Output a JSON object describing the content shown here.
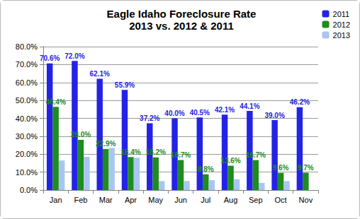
{
  "chart_data": {
    "type": "bar",
    "title": "Eagle Idaho Foreclosure Rate",
    "subtitle": "2013 vs. 2012 & 2011",
    "categories": [
      "Jan",
      "Feb",
      "Mar",
      "Apr",
      "May",
      "Jun",
      "Jul",
      "Aug",
      "Sep",
      "Oct",
      "Nov"
    ],
    "series": [
      {
        "name": "2011",
        "color": "#2323e6",
        "data_labels": true,
        "values": [
          70.6,
          72.0,
          62.1,
          55.9,
          37.2,
          40.0,
          40.5,
          42.1,
          44.1,
          39.0,
          46.2
        ],
        "value_labels": [
          "70.6%",
          "72.0%",
          "62.1%",
          "55.9%",
          "37.2%",
          "40.0%",
          "40.5%",
          "42.1%",
          "44.1%",
          "39.0%",
          "46.2%"
        ]
      },
      {
        "name": "2012",
        "color": "#1e8c1e",
        "data_labels": true,
        "values": [
          46.4,
          28.0,
          22.9,
          18.4,
          18.2,
          16.7,
          8.8,
          13.6,
          16.7,
          9.6,
          9.7
        ],
        "value_labels": [
          "46.4%",
          "28.0%",
          "22.9%",
          "18.4%",
          "18.2%",
          "16.7%",
          "8.8%",
          "13.6%",
          "16.7%",
          "9.6%",
          "9.7%"
        ]
      },
      {
        "name": "2013",
        "color": "#a9c6f0",
        "data_labels": false,
        "values": [
          16.5,
          18.5,
          23.5,
          18.0,
          5.0,
          5.0,
          5.5,
          6.0,
          4.0,
          5.0,
          null
        ]
      }
    ],
    "ylim": [
      0,
      80
    ],
    "yticks": [
      {
        "value": 0,
        "label": "0.0%"
      },
      {
        "value": 10,
        "label": "10.0%"
      },
      {
        "value": 20,
        "label": "20.0%"
      },
      {
        "value": 30,
        "label": "30.0%"
      },
      {
        "value": 40,
        "label": "40.0%"
      },
      {
        "value": 50,
        "label": "50.0%"
      },
      {
        "value": 60,
        "label": "60.0%"
      },
      {
        "value": 70,
        "label": "70.0%"
      },
      {
        "value": 80,
        "label": "80.0%"
      }
    ],
    "grid": true,
    "legend": "top-right"
  }
}
